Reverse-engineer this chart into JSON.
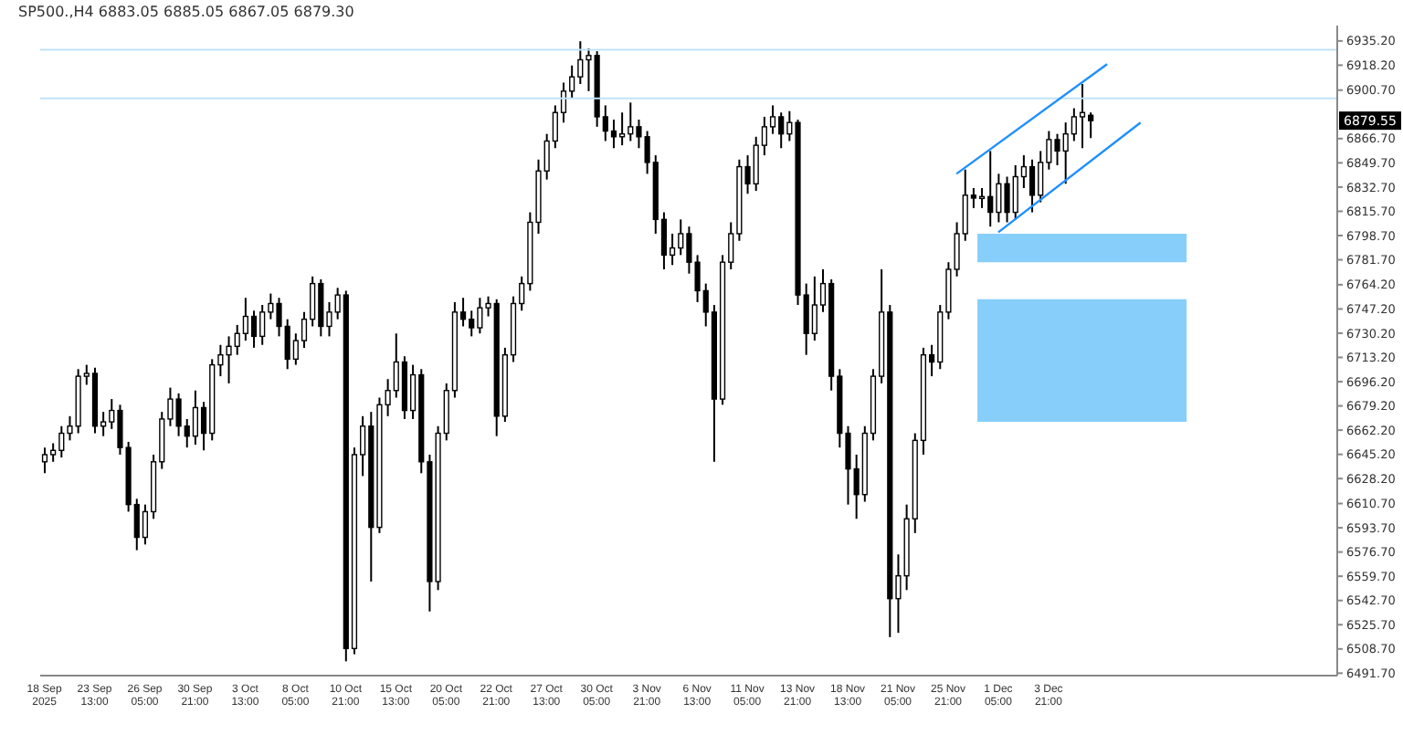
{
  "chart_data": {
    "type": "candlestick",
    "title": "SP500.,H4 6883.05 6885.05 6867.05 6879.30",
    "color": "#000000",
    "categories": [
      "18 Sep 2025",
      null,
      null,
      null,
      null,
      null,
      "23 Sep 13:00",
      null,
      null,
      null,
      null,
      null,
      "26 Sep 05:00",
      null,
      null,
      null,
      null,
      null,
      "30 Sep 21:00",
      null,
      null,
      null,
      null,
      null,
      "3 Oct 13:00",
      null,
      null,
      null,
      null,
      null,
      "8 Oct 05:00",
      null,
      null,
      null,
      null,
      null,
      "10 Oct 21:00",
      null,
      null,
      null,
      null,
      null,
      "15 Oct 13:00",
      null,
      null,
      null,
      null,
      null,
      "20 Oct 05:00",
      null,
      null,
      null,
      null,
      null,
      "22 Oct 21:00",
      null,
      null,
      null,
      null,
      null,
      "27 Oct 13:00",
      null,
      null,
      null,
      null,
      null,
      "30 Oct 05:00",
      null,
      null,
      null,
      null,
      null,
      "3 Nov 21:00",
      null,
      null,
      null,
      null,
      null,
      "6 Nov 13:00",
      null,
      null,
      null,
      null,
      null,
      "11 Nov 05:00",
      null,
      null,
      null,
      null,
      null,
      "13 Nov 21:00",
      null,
      null,
      null,
      null,
      null,
      "18 Nov 13:00",
      null,
      null,
      null,
      null,
      null,
      "21 Nov 05:00",
      null,
      null,
      null,
      null,
      null,
      "25 Nov 21:00",
      null,
      null,
      null,
      null,
      null,
      "1 Dec 05:00",
      null,
      null,
      null,
      null,
      null,
      "3 Dec 21:00",
      null,
      null,
      null,
      null,
      null,
      null,
      null,
      null,
      null,
      null,
      null,
      null,
      null,
      null,
      null,
      null,
      null,
      null,
      null,
      null,
      null,
      null,
      null,
      null,
      null,
      null,
      null,
      null,
      null,
      null,
      null,
      null,
      null,
      null
    ],
    "ohlc": [
      [
        6640,
        6650,
        6632,
        6645
      ],
      [
        6645,
        6653,
        6640,
        6648
      ],
      [
        6648,
        6665,
        6643,
        6660
      ],
      [
        6660,
        6672,
        6655,
        6665
      ],
      [
        6665,
        6705,
        6660,
        6700
      ],
      [
        6700,
        6708,
        6694,
        6702
      ],
      [
        6702,
        6706,
        6660,
        6665
      ],
      [
        6665,
        6675,
        6658,
        6668
      ],
      [
        6668,
        6684,
        6663,
        6676
      ],
      [
        6676,
        6680,
        6645,
        6650
      ],
      [
        6650,
        6654,
        6605,
        6610
      ],
      [
        6610,
        6614,
        6578,
        6587
      ],
      [
        6587,
        6610,
        6582,
        6605
      ],
      [
        6605,
        6645,
        6600,
        6640
      ],
      [
        6640,
        6675,
        6635,
        6670
      ],
      [
        6670,
        6692,
        6665,
        6684
      ],
      [
        6684,
        6688,
        6658,
        6665
      ],
      [
        6665,
        6670,
        6650,
        6658
      ],
      [
        6658,
        6690,
        6652,
        6678
      ],
      [
        6678,
        6682,
        6648,
        6660
      ],
      [
        6660,
        6712,
        6655,
        6708
      ],
      [
        6708,
        6722,
        6700,
        6715
      ],
      [
        6715,
        6728,
        6695,
        6721
      ],
      [
        6721,
        6736,
        6715,
        6730
      ],
      [
        6730,
        6755,
        6725,
        6742
      ],
      [
        6742,
        6746,
        6720,
        6728
      ],
      [
        6728,
        6750,
        6722,
        6745
      ],
      [
        6745,
        6758,
        6740,
        6751
      ],
      [
        6751,
        6755,
        6728,
        6735
      ],
      [
        6735,
        6740,
        6705,
        6712
      ],
      [
        6712,
        6730,
        6708,
        6725
      ],
      [
        6725,
        6745,
        6720,
        6740
      ],
      [
        6740,
        6770,
        6735,
        6765
      ],
      [
        6765,
        6768,
        6728,
        6735
      ],
      [
        6735,
        6752,
        6728,
        6745
      ],
      [
        6745,
        6762,
        6740,
        6757
      ],
      [
        6757,
        6760,
        6500,
        6509
      ],
      [
        6509,
        6650,
        6505,
        6645
      ],
      [
        6645,
        6672,
        6630,
        6665
      ],
      [
        6665,
        6675,
        6556,
        6594
      ],
      [
        6594,
        6685,
        6590,
        6680
      ],
      [
        6680,
        6698,
        6672,
        6690
      ],
      [
        6690,
        6730,
        6685,
        6710
      ],
      [
        6710,
        6714,
        6670,
        6676
      ],
      [
        6676,
        6708,
        6670,
        6701
      ],
      [
        6701,
        6705,
        6632,
        6640
      ],
      [
        6640,
        6645,
        6535,
        6556
      ],
      [
        6556,
        6665,
        6550,
        6660
      ],
      [
        6660,
        6695,
        6655,
        6690
      ],
      [
        6690,
        6752,
        6685,
        6745
      ],
      [
        6745,
        6755,
        6735,
        6740
      ],
      [
        6740,
        6746,
        6728,
        6734
      ],
      [
        6734,
        6755,
        6730,
        6748
      ],
      [
        6748,
        6756,
        6742,
        6751
      ],
      [
        6751,
        6754,
        6658,
        6672
      ],
      [
        6672,
        6720,
        6668,
        6715
      ],
      [
        6715,
        6756,
        6710,
        6751
      ],
      [
        6751,
        6770,
        6746,
        6765
      ],
      [
        6765,
        6815,
        6760,
        6808
      ],
      [
        6808,
        6852,
        6800,
        6844
      ],
      [
        6844,
        6870,
        6838,
        6865
      ],
      [
        6865,
        6890,
        6860,
        6885
      ],
      [
        6885,
        6906,
        6878,
        6900
      ],
      [
        6900,
        6918,
        6895,
        6910
      ],
      [
        6910,
        6935,
        6905,
        6922
      ],
      [
        6922,
        6930,
        6900,
        6925
      ],
      [
        6925,
        6928,
        6875,
        6882
      ],
      [
        6882,
        6890,
        6865,
        6872
      ],
      [
        6872,
        6880,
        6860,
        6868
      ],
      [
        6868,
        6885,
        6862,
        6870
      ],
      [
        6870,
        6892,
        6865,
        6875
      ],
      [
        6875,
        6880,
        6860,
        6868
      ],
      [
        6868,
        6872,
        6842,
        6850
      ],
      [
        6850,
        6855,
        6800,
        6810
      ],
      [
        6810,
        6815,
        6775,
        6785
      ],
      [
        6785,
        6800,
        6778,
        6790
      ],
      [
        6790,
        6810,
        6785,
        6800
      ],
      [
        6800,
        6805,
        6772,
        6780
      ],
      [
        6780,
        6785,
        6752,
        6760
      ],
      [
        6760,
        6765,
        6735,
        6745
      ],
      [
        6745,
        6750,
        6640,
        6684
      ],
      [
        6684,
        6785,
        6680,
        6780
      ],
      [
        6780,
        6808,
        6775,
        6800
      ],
      [
        6800,
        6852,
        6795,
        6847
      ],
      [
        6847,
        6855,
        6828,
        6835
      ],
      [
        6835,
        6868,
        6830,
        6862
      ],
      [
        6862,
        6882,
        6855,
        6875
      ],
      [
        6875,
        6890,
        6870,
        6882
      ],
      [
        6882,
        6885,
        6860,
        6870
      ],
      [
        6870,
        6886,
        6865,
        6878
      ],
      [
        6878,
        6880,
        6750,
        6757
      ],
      [
        6757,
        6765,
        6715,
        6730
      ],
      [
        6730,
        6770,
        6725,
        6750
      ],
      [
        6750,
        6775,
        6745,
        6765
      ],
      [
        6765,
        6768,
        6690,
        6700
      ],
      [
        6700,
        6705,
        6650,
        6660
      ],
      [
        6660,
        6665,
        6610,
        6635
      ],
      [
        6635,
        6645,
        6600,
        6617
      ],
      [
        6617,
        6665,
        6612,
        6660
      ],
      [
        6660,
        6705,
        6655,
        6700
      ],
      [
        6700,
        6775,
        6695,
        6745
      ],
      [
        6745,
        6750,
        6517,
        6544
      ],
      [
        6544,
        6575,
        6520,
        6560
      ],
      [
        6560,
        6610,
        6550,
        6600
      ],
      [
        6600,
        6660,
        6590,
        6655
      ],
      [
        6655,
        6720,
        6645,
        6715
      ],
      [
        6715,
        6722,
        6700,
        6710
      ],
      [
        6710,
        6750,
        6705,
        6745
      ],
      [
        6745,
        6780,
        6740,
        6775
      ],
      [
        6775,
        6808,
        6770,
        6800
      ],
      [
        6800,
        6845,
        6795,
        6827
      ],
      [
        6827,
        6832,
        6818,
        6825
      ],
      [
        6825,
        6832,
        6818,
        6826
      ],
      [
        6826,
        6858,
        6805,
        6815
      ],
      [
        6815,
        6842,
        6808,
        6835
      ],
      [
        6835,
        6840,
        6808,
        6815
      ],
      [
        6815,
        6848,
        6810,
        6840
      ],
      [
        6840,
        6855,
        6832,
        6847
      ],
      [
        6847,
        6852,
        6815,
        6827
      ],
      [
        6827,
        6858,
        6822,
        6850
      ],
      [
        6850,
        6872,
        6845,
        6866
      ],
      [
        6866,
        6870,
        6848,
        6858
      ],
      [
        6858,
        6878,
        6835,
        6870
      ],
      [
        6870,
        6888,
        6865,
        6882
      ],
      [
        6882,
        6905,
        6860,
        6885
      ],
      [
        6883.05,
        6885.05,
        6867.05,
        6879.3
      ],
      null,
      null,
      null,
      null,
      null,
      null,
      null,
      null,
      null,
      null,
      null,
      null,
      null,
      null,
      null,
      null,
      null,
      null,
      null,
      null,
      null,
      null,
      null,
      null,
      null,
      null,
      null,
      null,
      null
    ],
    "series": [
      {
        "type": "line",
        "color": "#1e90ff",
        "values": [
          null,
          null,
          null,
          null,
          null,
          null,
          null,
          null,
          null,
          null,
          null,
          null,
          null,
          null,
          null,
          null,
          null,
          null,
          null,
          null,
          null,
          null,
          null,
          null,
          null,
          null,
          null,
          null,
          null,
          null,
          null,
          null,
          null,
          null,
          null,
          null,
          null,
          null,
          null,
          null,
          null,
          null,
          null,
          null,
          null,
          null,
          null,
          null,
          null,
          null,
          null,
          null,
          null,
          null,
          null,
          null,
          null,
          null,
          null,
          null,
          null,
          null,
          null,
          null,
          null,
          null,
          null,
          null,
          null,
          null,
          null,
          null,
          null,
          null,
          null,
          null,
          null,
          null,
          null,
          null,
          null,
          null,
          null,
          null,
          null,
          null,
          null,
          null,
          null,
          null,
          null,
          null,
          null,
          null,
          null,
          null,
          null,
          null,
          null,
          null,
          null,
          null,
          null,
          null,
          null,
          null,
          null,
          null,
          null,
          6842,
          null,
          null,
          null,
          null,
          null,
          null,
          null,
          null,
          null,
          null,
          null,
          null,
          null,
          null,
          null,
          null,
          null,
          6919,
          null,
          null,
          null,
          null,
          null,
          null,
          null,
          null,
          null,
          null,
          null,
          null,
          null,
          null,
          null,
          null,
          null,
          null,
          null,
          null,
          null,
          null,
          null,
          null,
          null,
          null,
          null
        ]
      },
      {
        "type": "line",
        "color": "#1e90ff",
        "values": [
          null,
          null,
          null,
          null,
          null,
          null,
          null,
          null,
          null,
          null,
          null,
          null,
          null,
          null,
          null,
          null,
          null,
          null,
          null,
          null,
          null,
          null,
          null,
          null,
          null,
          null,
          null,
          null,
          null,
          null,
          null,
          null,
          null,
          null,
          null,
          null,
          null,
          null,
          null,
          null,
          null,
          null,
          null,
          null,
          null,
          null,
          null,
          null,
          null,
          null,
          null,
          null,
          null,
          null,
          null,
          null,
          null,
          null,
          null,
          null,
          null,
          null,
          null,
          null,
          null,
          null,
          null,
          null,
          null,
          null,
          null,
          null,
          null,
          null,
          null,
          null,
          null,
          null,
          null,
          null,
          null,
          null,
          null,
          null,
          null,
          null,
          null,
          null,
          null,
          null,
          null,
          null,
          null,
          null,
          null,
          null,
          null,
          null,
          null,
          null,
          null,
          null,
          null,
          null,
          null,
          null,
          null,
          null,
          null,
          null,
          null,
          null,
          null,
          null,
          6801,
          null,
          null,
          null,
          null,
          null,
          null,
          null,
          null,
          null,
          null,
          null,
          null,
          null,
          null,
          null,
          null,
          6878,
          null,
          null,
          null,
          null,
          null,
          null,
          null,
          null,
          null,
          null,
          null,
          null,
          null,
          null,
          null,
          null,
          null,
          null,
          null,
          null,
          null,
          null,
          null
        ]
      }
    ],
    "ylim": [
      6490,
      6946
    ],
    "yticks": [
      {
        "value": 6935.2,
        "label": "6935.20"
      },
      {
        "value": 6918.2,
        "label": "6918.20"
      },
      {
        "value": 6900.7,
        "label": "6900.70"
      },
      {
        "value": 6866.7,
        "label": "6866.70"
      },
      {
        "value": 6849.7,
        "label": "6849.70"
      },
      {
        "value": 6832.7,
        "label": "6832.70"
      },
      {
        "value": 6815.7,
        "label": "6815.70"
      },
      {
        "value": 6798.7,
        "label": "6798.70"
      },
      {
        "value": 6781.7,
        "label": "6781.70"
      },
      {
        "value": 6764.2,
        "label": "6764.20"
      },
      {
        "value": 6747.2,
        "label": "6747.20"
      },
      {
        "value": 6730.2,
        "label": "6730.20"
      },
      {
        "value": 6713.2,
        "label": "6713.20"
      },
      {
        "value": 6696.2,
        "label": "6696.20"
      },
      {
        "value": 6679.2,
        "label": "6679.20"
      },
      {
        "value": 6662.2,
        "label": "6662.20"
      },
      {
        "value": 6645.2,
        "label": "6645.20"
      },
      {
        "value": 6628.2,
        "label": "6628.20"
      },
      {
        "value": 6610.7,
        "label": "6610.70"
      },
      {
        "value": 6593.7,
        "label": "6593.70"
      },
      {
        "value": 6576.7,
        "label": "6576.70"
      },
      {
        "value": 6559.7,
        "label": "6559.70"
      },
      {
        "value": 6542.7,
        "label": "6542.70"
      },
      {
        "value": 6525.7,
        "label": "6525.70"
      },
      {
        "value": 6508.7,
        "label": "6508.70"
      },
      {
        "value": 6491.7,
        "label": "6491.70"
      }
    ],
    "ref_lines": [
      {
        "axis": "y",
        "value": 6929,
        "color": "#bfe3f8"
      },
      {
        "axis": "y",
        "value": 6895,
        "color": "#bfe3f8"
      }
    ],
    "bands": [
      {
        "axis": "y",
        "from": 6780,
        "to": 6800,
        "color": "#87cefa"
      },
      {
        "axis": "y",
        "from": 6668,
        "to": 6754,
        "color": "#87cefa"
      }
    ],
    "annotations": [
      "6879.55"
    ]
  }
}
